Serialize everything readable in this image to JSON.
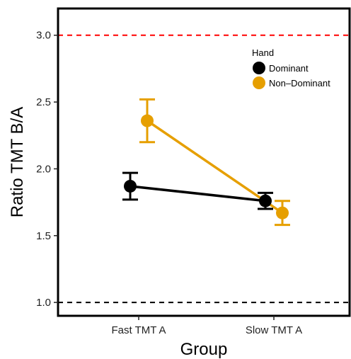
{
  "chart_data": {
    "type": "line",
    "xlabel": "Group",
    "ylabel": "Ratio TMT B/A",
    "categories": [
      "Fast TMT A",
      "Slow TMT A"
    ],
    "ylim": [
      0.9,
      3.2
    ],
    "yticks": [
      "1.0",
      "1.5",
      "2.0",
      "2.5",
      "3.0"
    ],
    "grid": false,
    "legend": {
      "title": "Hand",
      "placement": "top-right"
    },
    "reference_lines": [
      {
        "y": 3.0,
        "color": "#ff0000",
        "style": "dashed"
      },
      {
        "y": 1.0,
        "color": "#000000",
        "style": "dashed"
      }
    ],
    "series": [
      {
        "name": "Dominant",
        "color": "#000000",
        "values": [
          1.87,
          1.76
        ],
        "error_low": [
          1.77,
          1.7
        ],
        "error_high": [
          1.97,
          1.82
        ]
      },
      {
        "name": "Non–Dominant",
        "color": "#e69f00",
        "values": [
          2.36,
          1.67
        ],
        "error_low": [
          2.2,
          1.58
        ],
        "error_high": [
          2.52,
          1.76
        ]
      }
    ]
  }
}
